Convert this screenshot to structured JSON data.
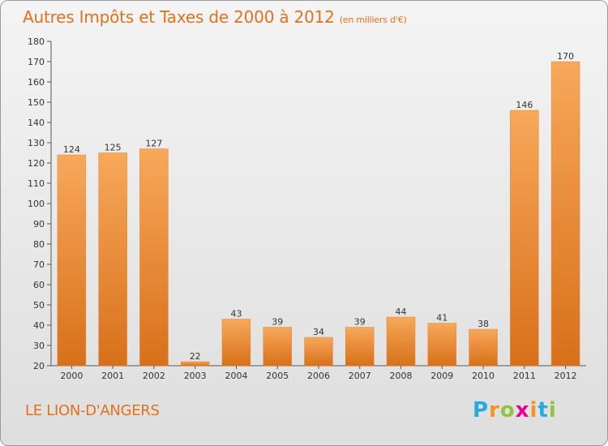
{
  "title": "Autres Impôts et Taxes de 2000 à 2012",
  "unit": "(en milliers d'€)",
  "commune": "LE LION-D'ANGERS",
  "logo": {
    "letters": [
      "P",
      "r",
      "o",
      "x",
      "i",
      "t",
      "i"
    ],
    "colors": [
      "#29a9e1",
      "#f7941d",
      "#8dc63f",
      "#ec008c",
      "#f7941d",
      "#29a9e1",
      "#8dc63f"
    ]
  },
  "colors": {
    "bar": "#f0922e",
    "bar_light": "#f7a85a",
    "bar_dark": "#d8701a",
    "text": "#e2711d"
  },
  "chart_data": {
    "type": "bar",
    "title": "Autres Impôts et Taxes de 2000 à 2012",
    "categories": [
      "2000",
      "2001",
      "2002",
      "2003",
      "2004",
      "2005",
      "2006",
      "2007",
      "2008",
      "2009",
      "2010",
      "2011",
      "2012"
    ],
    "values": [
      124,
      125,
      127,
      22,
      43,
      39,
      34,
      39,
      44,
      41,
      38,
      146,
      170
    ],
    "ylim": [
      20,
      180
    ],
    "yticks": [
      20,
      30,
      40,
      50,
      60,
      70,
      80,
      90,
      100,
      110,
      120,
      130,
      140,
      150,
      160,
      170,
      180
    ],
    "grid": false,
    "xlabel": "",
    "ylabel": ""
  }
}
